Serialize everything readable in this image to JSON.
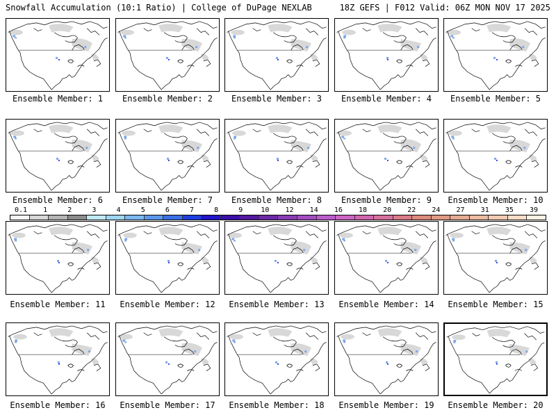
{
  "header": {
    "left_title": "Snowfall Accumulation (10:1 Ratio) | College of DuPage NEXLAB",
    "right_title": "18Z GEFS | F012 Valid: 06Z MON NOV 17 2025"
  },
  "panels": [
    {
      "caption": "Ensemble Member: 1"
    },
    {
      "caption": "Ensemble Member: 2"
    },
    {
      "caption": "Ensemble Member: 3"
    },
    {
      "caption": "Ensemble Member: 4"
    },
    {
      "caption": "Ensemble Member: 5"
    },
    {
      "caption": "Ensemble Member: 6"
    },
    {
      "caption": "Ensemble Member: 7"
    },
    {
      "caption": "Ensemble Member: 8"
    },
    {
      "caption": "Ensemble Member: 9"
    },
    {
      "caption": "Ensemble Member: 10"
    },
    {
      "caption": "Ensemble Member: 11"
    },
    {
      "caption": "Ensemble Member: 12"
    },
    {
      "caption": "Ensemble Member: 13"
    },
    {
      "caption": "Ensemble Member: 14"
    },
    {
      "caption": "Ensemble Member: 15"
    },
    {
      "caption": "Ensemble Member: 16"
    },
    {
      "caption": "Ensemble Member: 17"
    },
    {
      "caption": "Ensemble Member: 18"
    },
    {
      "caption": "Ensemble Member: 19"
    },
    {
      "caption": "Ensemble Member: 20"
    }
  ],
  "colorbar": {
    "ticks": [
      "0.1",
      "1",
      "2",
      "3",
      "4",
      "5",
      "6",
      "7",
      "8",
      "9",
      "10",
      "12",
      "14",
      "16",
      "18",
      "20",
      "22",
      "24",
      "27",
      "31",
      "35",
      "39"
    ],
    "colors": [
      "#f4f4f4",
      "#d6d6d6",
      "#b4b4b4",
      "#8c8c8c",
      "#bfeaf5",
      "#9fd5f0",
      "#7ab8ef",
      "#5a97eb",
      "#3b6fe6",
      "#1f3fe0",
      "#2214c8",
      "#3a0ea8",
      "#55189e",
      "#6e2aa6",
      "#8a3cb4",
      "#a34cc0",
      "#bb5ccc",
      "#cc64c4",
      "#d066b0",
      "#d4709c",
      "#d87c88",
      "#dc8a7c",
      "#e09a84",
      "#e6aa90",
      "#ecbaa0",
      "#f2cab2",
      "#f8dcc8",
      "#fdf0e4"
    ]
  }
}
